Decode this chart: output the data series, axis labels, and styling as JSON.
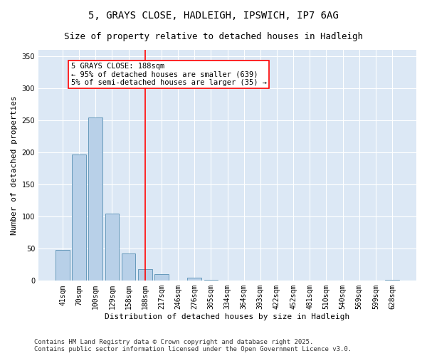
{
  "title1": "5, GRAYS CLOSE, HADLEIGH, IPSWICH, IP7 6AG",
  "title2": "Size of property relative to detached houses in Hadleigh",
  "xlabel": "Distribution of detached houses by size in Hadleigh",
  "ylabel": "Number of detached properties",
  "categories": [
    "41sqm",
    "70sqm",
    "100sqm",
    "129sqm",
    "158sqm",
    "188sqm",
    "217sqm",
    "246sqm",
    "276sqm",
    "305sqm",
    "334sqm",
    "364sqm",
    "393sqm",
    "422sqm",
    "452sqm",
    "481sqm",
    "510sqm",
    "540sqm",
    "569sqm",
    "599sqm",
    "628sqm"
  ],
  "values": [
    48,
    197,
    255,
    105,
    42,
    18,
    10,
    0,
    5,
    1,
    0,
    0,
    0,
    0,
    0,
    0,
    0,
    0,
    0,
    0,
    2
  ],
  "bar_color": "#b8d0e8",
  "bar_edge_color": "#6699bb",
  "vline_x": 5,
  "vline_color": "red",
  "annotation_text": "5 GRAYS CLOSE: 188sqm\n← 95% of detached houses are smaller (639)\n5% of semi-detached houses are larger (35) →",
  "annotation_box_color": "white",
  "annotation_box_edge_color": "red",
  "ylim": [
    0,
    360
  ],
  "yticks": [
    0,
    50,
    100,
    150,
    200,
    250,
    300,
    350
  ],
  "bg_color": "#dce8f5",
  "footer": "Contains HM Land Registry data © Crown copyright and database right 2025.\nContains public sector information licensed under the Open Government Licence v3.0.",
  "title_fontsize": 10,
  "subtitle_fontsize": 9,
  "axis_label_fontsize": 8,
  "tick_fontsize": 7,
  "footer_fontsize": 6.5,
  "annotation_fontsize": 7.5
}
